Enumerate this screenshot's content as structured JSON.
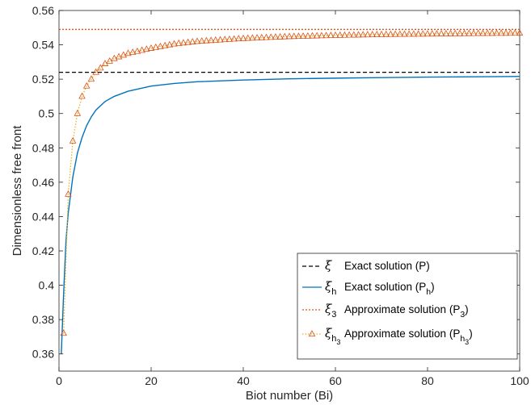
{
  "chart_data": {
    "type": "line",
    "xlabel": "Biot number (Bi)",
    "ylabel": "Dimensionless free front",
    "xlim": [
      0,
      100
    ],
    "ylim": [
      0.35,
      0.56
    ],
    "x_ticks": [
      "0",
      "20",
      "40",
      "60",
      "80",
      "100"
    ],
    "y_ticks": [
      "0.36",
      "0.38",
      "0.4",
      "0.42",
      "0.44",
      "0.46",
      "0.48",
      "0.5",
      "0.52",
      "0.54",
      "0.56"
    ],
    "grid": false,
    "legend_position": "bottom-right",
    "series": [
      {
        "name": "Exact solution (P)",
        "symbol": "ξ",
        "style": "dashed",
        "color": "#000000",
        "x": [
          0,
          100
        ],
        "y": [
          0.524,
          0.524
        ]
      },
      {
        "name": "Exact solution (P_h)",
        "symbol": "ξ_h",
        "style": "solid",
        "color": "#0072BD",
        "x": [
          0.5,
          1,
          1.5,
          2,
          3,
          4,
          5,
          6,
          7,
          8,
          10,
          12,
          15,
          20,
          25,
          30,
          40,
          50,
          60,
          70,
          80,
          90,
          100
        ],
        "y": [
          0.36,
          0.395,
          0.425,
          0.442,
          0.463,
          0.477,
          0.486,
          0.493,
          0.498,
          0.502,
          0.507,
          0.51,
          0.513,
          0.516,
          0.5175,
          0.5185,
          0.5195,
          0.5202,
          0.5206,
          0.5209,
          0.5212,
          0.5214,
          0.5216
        ]
      },
      {
        "name": "Approximate solution (P_3)",
        "symbol": "ξ_3",
        "style": "dotted",
        "color": "#D95319",
        "x": [
          0,
          100
        ],
        "y": [
          0.549,
          0.549
        ]
      },
      {
        "name": "Approximate solution (P_h3)",
        "symbol": "ξ_h3",
        "style": "dotted-triangle",
        "color": "#EDB120",
        "x": [
          1,
          2,
          3,
          4,
          5,
          6,
          7,
          8,
          10,
          12,
          15,
          20,
          25,
          30,
          40,
          50,
          60,
          70,
          80,
          90,
          100
        ],
        "y": [
          0.372,
          0.453,
          0.484,
          0.5,
          0.51,
          0.516,
          0.52,
          0.524,
          0.529,
          0.532,
          0.535,
          0.538,
          0.5405,
          0.542,
          0.5437,
          0.5448,
          0.5455,
          0.546,
          0.5463,
          0.5466,
          0.5468
        ]
      }
    ]
  },
  "legend": {
    "items": [
      {
        "sym": "ξ",
        "sub": "",
        "subsub": "",
        "text": "Exact solution (P",
        "tsub": "",
        "tsubsub": "",
        "tail": ")"
      },
      {
        "sym": "ξ",
        "sub": "h",
        "subsub": "",
        "text": "Exact solution (P",
        "tsub": "h",
        "tsubsub": "",
        "tail": ")"
      },
      {
        "sym": "ξ",
        "sub": "3",
        "subsub": "",
        "text": "Approximate solution (P",
        "tsub": "3",
        "tsubsub": "",
        "tail": ")"
      },
      {
        "sym": "ξ",
        "sub": "h",
        "subsub": "3",
        "text": "Approximate solution (P",
        "tsub": "h",
        "tsubsub": "3",
        "tail": ")"
      }
    ]
  }
}
